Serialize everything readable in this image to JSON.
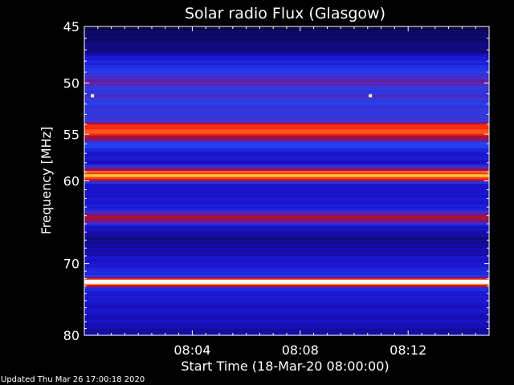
{
  "chart_data": {
    "type": "heatmap",
    "title": "Solar radio Flux (Glasgow)",
    "xlabel": "Start Time (18-Mar-20 08:00:00)",
    "ylabel": "Frequency [MHz]",
    "x_unit": "minutes after 08:00",
    "xlim": [
      0,
      15
    ],
    "ylim": [
      45,
      80
    ],
    "y_scale": "log",
    "x_ticks": [
      "08:04",
      "08:08",
      "08:12"
    ],
    "x_tick_values": [
      4,
      8,
      12
    ],
    "y_ticks": [
      "45",
      "50",
      "55",
      "60",
      "70",
      "80"
    ],
    "y_tick_values": [
      45,
      50,
      55,
      60,
      70,
      80
    ],
    "background_color": "#1a28e8",
    "frequency_bands": [
      {
        "freq_mhz": 45.0,
        "intensity": 0.05
      },
      {
        "freq_mhz": 46.0,
        "intensity": 0.08
      },
      {
        "freq_mhz": 47.0,
        "intensity": 0.1
      },
      {
        "freq_mhz": 48.0,
        "intensity": 0.2
      },
      {
        "freq_mhz": 49.0,
        "intensity": 0.28
      },
      {
        "freq_mhz": 49.8,
        "intensity": 0.4
      },
      {
        "freq_mhz": 50.5,
        "intensity": 0.3
      },
      {
        "freq_mhz": 51.5,
        "intensity": 0.32
      },
      {
        "freq_mhz": 52.5,
        "intensity": 0.3
      },
      {
        "freq_mhz": 53.5,
        "intensity": 0.3
      },
      {
        "freq_mhz": 54.3,
        "intensity": 0.7
      },
      {
        "freq_mhz": 54.8,
        "intensity": 0.75
      },
      {
        "freq_mhz": 55.3,
        "intensity": 0.5
      },
      {
        "freq_mhz": 56.0,
        "intensity": 0.3
      },
      {
        "freq_mhz": 57.0,
        "intensity": 0.18
      },
      {
        "freq_mhz": 58.0,
        "intensity": 0.15
      },
      {
        "freq_mhz": 59.4,
        "intensity": 0.85
      },
      {
        "freq_mhz": 60.5,
        "intensity": 0.15
      },
      {
        "freq_mhz": 62.0,
        "intensity": 0.16
      },
      {
        "freq_mhz": 63.0,
        "intensity": 0.18
      },
      {
        "freq_mhz": 64.3,
        "intensity": 0.55
      },
      {
        "freq_mhz": 65.5,
        "intensity": 0.14
      },
      {
        "freq_mhz": 67.0,
        "intensity": 0.1
      },
      {
        "freq_mhz": 68.5,
        "intensity": 0.12
      },
      {
        "freq_mhz": 70.0,
        "intensity": 0.16
      },
      {
        "freq_mhz": 71.5,
        "intensity": 0.2
      },
      {
        "freq_mhz": 72.4,
        "intensity": 1.0
      },
      {
        "freq_mhz": 73.5,
        "intensity": 0.2
      },
      {
        "freq_mhz": 75.0,
        "intensity": 0.16
      },
      {
        "freq_mhz": 77.0,
        "intensity": 0.14
      },
      {
        "freq_mhz": 79.0,
        "intensity": 0.12
      },
      {
        "freq_mhz": 80.0,
        "intensity": 0.1
      }
    ],
    "bursts": [
      {
        "time_min": 0.3,
        "freq_mhz": 51.2,
        "intensity": 0.95
      },
      {
        "time_min": 10.6,
        "freq_mhz": 51.2,
        "intensity": 0.95
      }
    ],
    "colorscale": [
      "#000000",
      "#1a10c8",
      "#2440f0",
      "#6a1a9a",
      "#b8101e",
      "#ff3010",
      "#ffd040",
      "#ffffff"
    ]
  },
  "footer": {
    "updated": "Updated Thu Mar 26 17:00:18 2020"
  }
}
